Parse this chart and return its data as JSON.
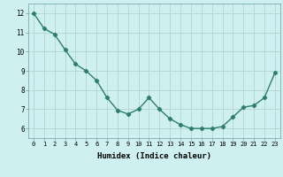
{
  "x": [
    0,
    1,
    2,
    3,
    4,
    5,
    6,
    7,
    8,
    9,
    10,
    11,
    12,
    13,
    14,
    15,
    16,
    17,
    18,
    19,
    20,
    21,
    22,
    23
  ],
  "y": [
    12.0,
    11.2,
    10.9,
    10.1,
    9.35,
    9.0,
    8.5,
    7.6,
    6.95,
    6.75,
    7.0,
    7.6,
    7.0,
    6.5,
    6.2,
    6.0,
    6.0,
    6.0,
    6.1,
    6.6,
    7.1,
    7.2,
    7.6,
    8.9
  ],
  "xlabel": "Humidex (Indice chaleur)",
  "ylim": [
    5.5,
    12.5
  ],
  "xlim": [
    -0.5,
    23.5
  ],
  "yticks": [
    6,
    7,
    8,
    9,
    10,
    11,
    12
  ],
  "xticks": [
    0,
    1,
    2,
    3,
    4,
    5,
    6,
    7,
    8,
    9,
    10,
    11,
    12,
    13,
    14,
    15,
    16,
    17,
    18,
    19,
    20,
    21,
    22,
    23
  ],
  "line_color": "#2e7d6e",
  "marker": "D",
  "marker_size": 2.2,
  "bg_color": "#cff0f0",
  "grid_color": "#b8d8d8",
  "line_width": 1.0
}
